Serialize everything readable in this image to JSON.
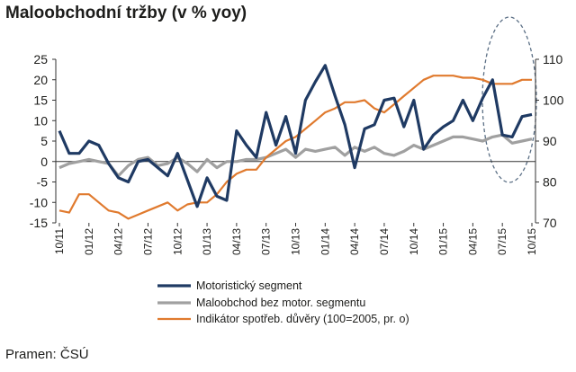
{
  "title": "Maloobchodní tržby (v % yoy)",
  "source": "Pramen: ČSÚ",
  "chart_data": {
    "type": "line",
    "x": [
      "10/11",
      "11/11",
      "12/11",
      "01/12",
      "02/12",
      "03/12",
      "04/12",
      "05/12",
      "06/12",
      "07/12",
      "08/12",
      "09/12",
      "10/12",
      "11/12",
      "12/12",
      "01/13",
      "02/13",
      "03/13",
      "04/13",
      "05/13",
      "06/13",
      "07/13",
      "08/13",
      "09/13",
      "10/13",
      "11/13",
      "12/13",
      "01/14",
      "02/14",
      "03/14",
      "04/14",
      "05/14",
      "06/14",
      "07/14",
      "08/14",
      "09/14",
      "10/14",
      "11/14",
      "12/14",
      "01/15",
      "02/15",
      "03/15",
      "04/15",
      "05/15",
      "06/15",
      "07/15",
      "08/15",
      "09/15",
      "10/15"
    ],
    "x_tick_labels": [
      "10/11",
      "01/12",
      "04/12",
      "07/12",
      "10/12",
      "01/13",
      "04/13",
      "07/13",
      "10/13",
      "01/14",
      "04/14",
      "07/14",
      "10/14",
      "01/15",
      "04/15",
      "07/15",
      "10/15"
    ],
    "y_left": {
      "min": -15,
      "max": 25,
      "step": 5
    },
    "y_right": {
      "min": 70,
      "max": 110,
      "step": 10
    },
    "grid": false,
    "legend_position": "bottom-left",
    "series": [
      {
        "name": "Motoristický segment",
        "axis": "left",
        "color": "#1f3a63",
        "values": [
          7.5,
          2,
          2,
          5,
          4,
          -0.5,
          -4,
          -5,
          0,
          0.5,
          -1.5,
          -3.5,
          2,
          -4.5,
          -11,
          -4,
          -8.5,
          -9.5,
          7.5,
          4,
          1,
          12,
          4,
          11,
          2,
          15,
          19.5,
          23.5,
          16,
          9,
          -1.5,
          8,
          9,
          15,
          15.5,
          8.5,
          15,
          3,
          6.5,
          8.5,
          10,
          15,
          10,
          15.5,
          20,
          6.5,
          6,
          11,
          11.5
        ]
      },
      {
        "name": "Maloobchod bez motor. segmentu",
        "axis": "left",
        "color": "#a0a0a0",
        "values": [
          -1.5,
          -0.5,
          0,
          0.5,
          0,
          -0.5,
          -3.5,
          -1,
          0.5,
          1,
          -1,
          -0.5,
          1,
          -0.5,
          -2.5,
          0.5,
          -1.5,
          0,
          0,
          0.5,
          0.5,
          1,
          2,
          3,
          1,
          3,
          2.5,
          3,
          3.5,
          1.5,
          3.5,
          2.5,
          3.5,
          2,
          1.5,
          2.5,
          4,
          3,
          4,
          5,
          6,
          6,
          5.5,
          5,
          6,
          6.5,
          4.5,
          5,
          5.5
        ]
      },
      {
        "name": "Indikátor spotřeb. důvěry (100=2005, pr. o)",
        "axis": "right",
        "color": "#e07a2e",
        "values": [
          73,
          72.5,
          77,
          77,
          75,
          73,
          72.5,
          71,
          72,
          73,
          74,
          75,
          73,
          74.5,
          75,
          75,
          77,
          80,
          82,
          83,
          83,
          86,
          88,
          90,
          91,
          93,
          95,
          97,
          98,
          99.5,
          99.5,
          100,
          98,
          97,
          99,
          101,
          103,
          105,
          106,
          106,
          106,
          105.5,
          105.5,
          105,
          104,
          104,
          104,
          105,
          105
        ]
      }
    ]
  }
}
